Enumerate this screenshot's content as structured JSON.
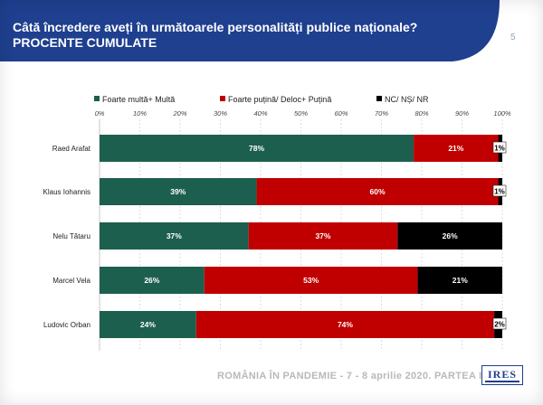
{
  "header": {
    "title_line1": "Câtă încredere aveți în următoarele personalități publice naționale?",
    "title_line2": "PROCENTE CUMULATE",
    "page_number": "5"
  },
  "footer": {
    "caption": "ROMÂNIA ÎN PANDEMIE - 7 - 8 aprilie 2020. PARTEA I",
    "logo_text": "IRES"
  },
  "colors": {
    "header_bg": "#1f3f8f",
    "green": "#1d5f4f",
    "red": "#c00000",
    "black": "#000000"
  },
  "chart_data": {
    "type": "bar",
    "orientation": "horizontal",
    "stacked": true,
    "title": "Câtă încredere aveți în următoarele personalități publice naționale?",
    "subtitle": "PROCENTE CUMULATE",
    "categories": [
      "Raed Arafat",
      "Klaus Iohannis",
      "Nelu Tătaru",
      "Marcel Vela",
      "Ludovic Orban"
    ],
    "series": [
      {
        "name": "Foarte multă+ Multă",
        "color": "#1d5f4f",
        "values": [
          78,
          39,
          37,
          26,
          24
        ],
        "labels": [
          "78%",
          "39%",
          "37%",
          "26%",
          "24%"
        ]
      },
      {
        "name": "Foarte puțină/ Deloc+ Puțină",
        "color": "#c00000",
        "values": [
          21,
          60,
          37,
          53,
          74
        ],
        "labels": [
          "21%",
          "60%",
          "37%",
          "53%",
          "74%"
        ]
      },
      {
        "name": "NC/ NȘ/ NR",
        "color": "#000000",
        "values": [
          1,
          1,
          26,
          21,
          2
        ],
        "labels": [
          "1%",
          "1%",
          "26%",
          "21%",
          "2%"
        ]
      }
    ],
    "xlim": [
      0,
      100
    ],
    "xticks": [
      "0%",
      "10%",
      "20%",
      "30%",
      "40%",
      "50%",
      "60%",
      "70%",
      "80%",
      "90%",
      "100%"
    ],
    "legend_position": "top",
    "grid": true
  }
}
